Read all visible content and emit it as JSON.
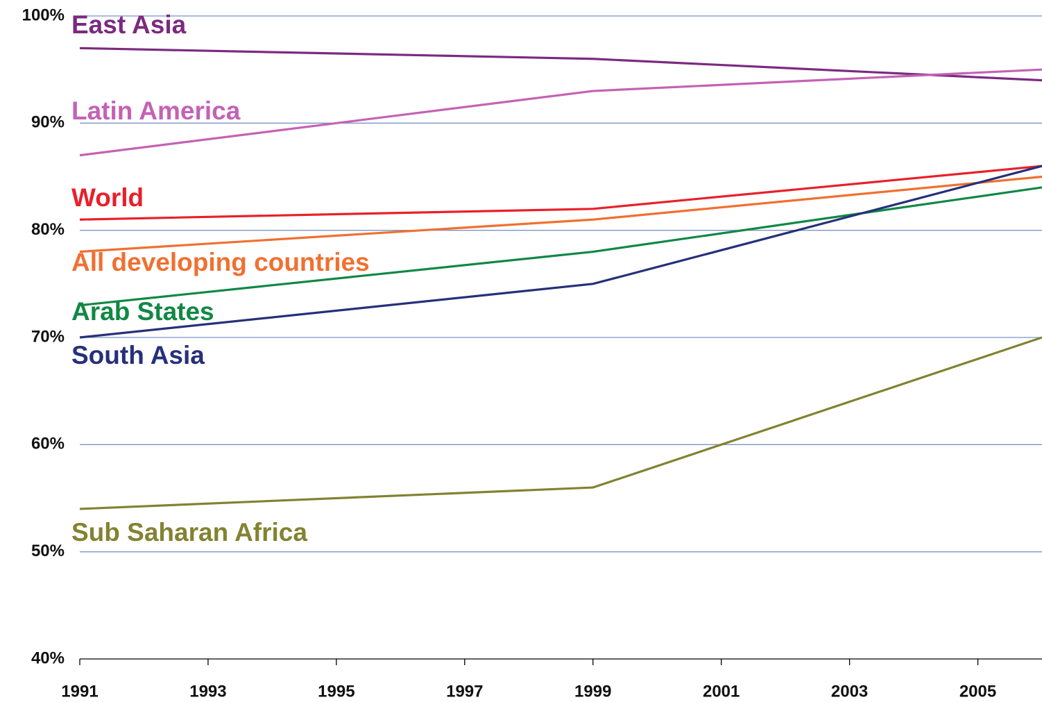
{
  "chart_data": {
    "type": "line",
    "x": [
      1991,
      1999,
      2006
    ],
    "series": [
      {
        "name": "East Asia",
        "color": "#7b2a80",
        "values": [
          97,
          96,
          94
        ]
      },
      {
        "name": "Latin America",
        "color": "#c462b4",
        "values": [
          87,
          93,
          95
        ]
      },
      {
        "name": "World",
        "color": "#e8202a",
        "values": [
          81,
          82,
          86
        ]
      },
      {
        "name": "All developing countries",
        "color": "#f07030",
        "values": [
          78,
          81,
          85
        ]
      },
      {
        "name": "Arab States",
        "color": "#108844",
        "values": [
          73,
          78,
          84
        ]
      },
      {
        "name": "South Asia",
        "color": "#26307a",
        "values": [
          70,
          75,
          86
        ]
      },
      {
        "name": "Sub Saharan Africa",
        "color": "#828232",
        "values": [
          54,
          56,
          70
        ]
      }
    ],
    "xlim": [
      1991,
      2006
    ],
    "xticks": [
      1991,
      1993,
      1995,
      1997,
      1999,
      2001,
      2003,
      2005
    ],
    "ylim": [
      40,
      100
    ],
    "yticks": [
      {
        "value": 40,
        "label": "40%"
      },
      {
        "value": 50,
        "label": "50%"
      },
      {
        "value": 60,
        "label": "60%"
      },
      {
        "value": 70,
        "label": "70%"
      },
      {
        "value": 80,
        "label": "80%"
      },
      {
        "value": 90,
        "label": "90%"
      },
      {
        "value": 100,
        "label": "100%"
      }
    ],
    "grid": true
  }
}
